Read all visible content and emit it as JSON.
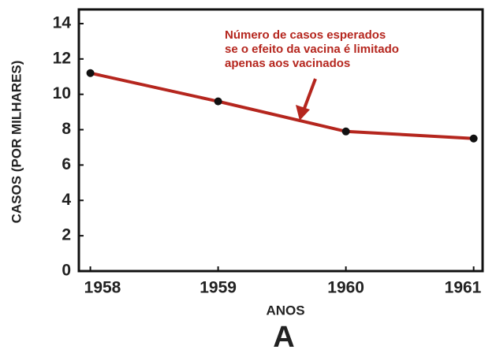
{
  "chart_data": {
    "type": "line",
    "x": [
      1958,
      1959,
      1960,
      1961
    ],
    "series": [
      {
        "name": "Casos esperados",
        "color": "#b5261e",
        "values": [
          11.2,
          9.6,
          7.9,
          7.5
        ]
      }
    ],
    "xlim": [
      1957.91,
      1961.07
    ],
    "xticks": [
      1958,
      1959,
      1960,
      1961
    ],
    "ylim": [
      0,
      14.8
    ],
    "yticks": [
      0,
      2,
      4,
      6,
      8,
      10,
      12,
      14
    ],
    "xlabel": "ANOS",
    "ylabel": "CASOS (POR MILHARES)",
    "annotation": [
      "Número de casos esperados",
      "se o efeito da vacina é limitado",
      "apenas aos vacinados"
    ],
    "panel_label": "A"
  }
}
